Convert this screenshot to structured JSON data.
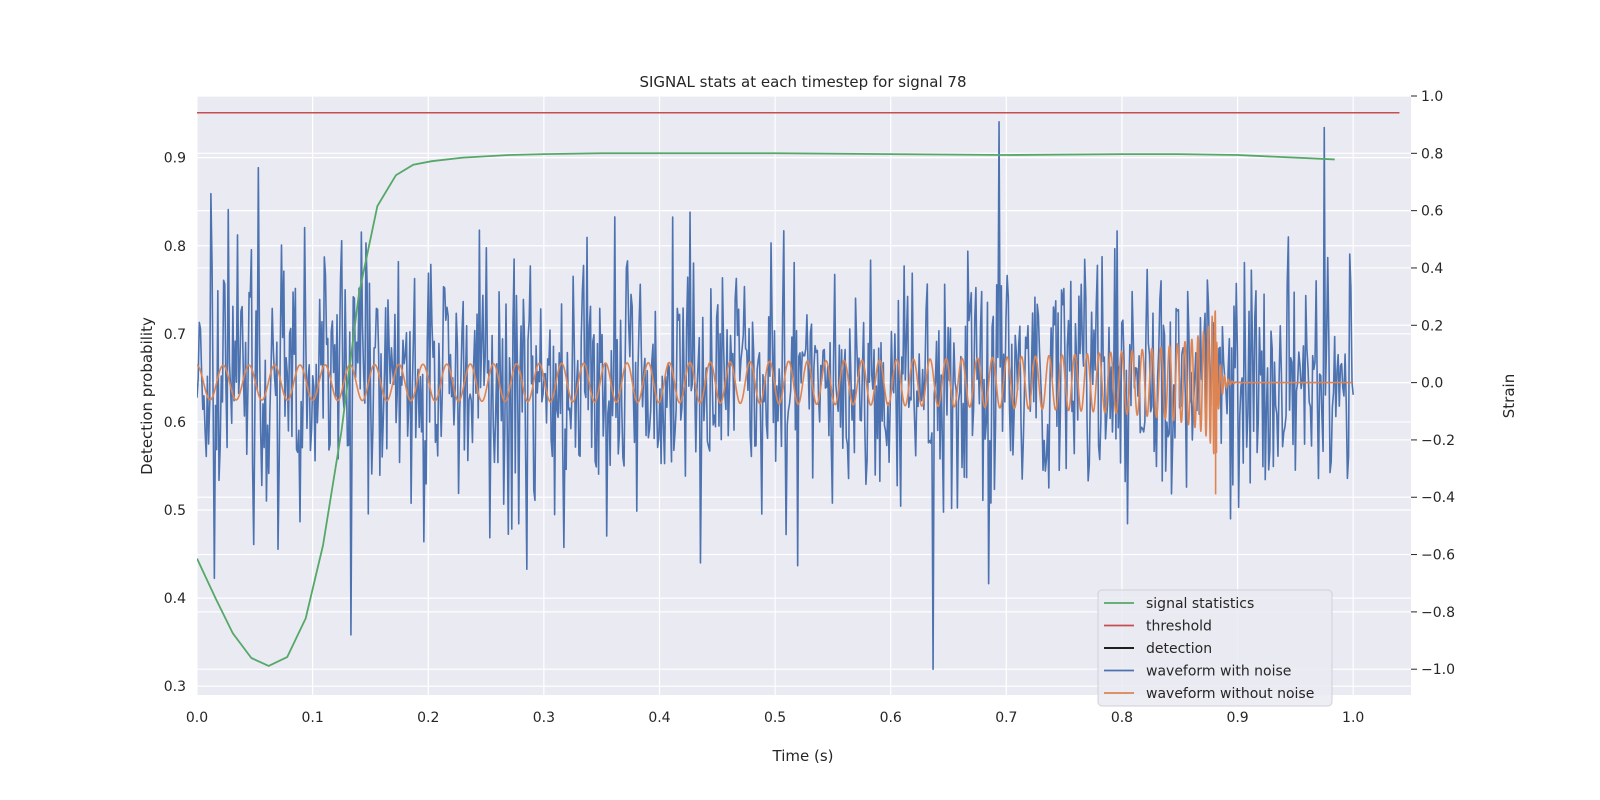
{
  "chart_data": {
    "type": "line",
    "title": "SIGNAL stats at each timestep for signal 78",
    "xlabel": "Time (s)",
    "ylabel_left": "Detection probability",
    "ylabel_right": "Strain",
    "xlim": [
      0.0,
      1.05
    ],
    "ylim_left": [
      0.29,
      0.97
    ],
    "ylim_right": [
      -1.09,
      1.0
    ],
    "x_ticks": [
      "0.0",
      "0.1",
      "0.2",
      "0.3",
      "0.4",
      "0.5",
      "0.6",
      "0.7",
      "0.8",
      "0.9",
      "1.0"
    ],
    "y_left_ticks": [
      "0.3",
      "0.4",
      "0.5",
      "0.6",
      "0.7",
      "0.8",
      "0.9"
    ],
    "y_right_ticks": [
      "1.0",
      "0.8",
      "0.6",
      "0.4",
      "0.2",
      "0.0",
      "−0.2",
      "−0.4",
      "−0.6",
      "−0.8",
      "−1.0"
    ],
    "grid": true,
    "legend_position": "lower-right",
    "colors": {
      "signal_statistics": "#55a868",
      "threshold": "#c44e52",
      "detection": "#000000",
      "waveform_with_noise": "#4c72b0",
      "waveform_without_noise": "#dd8452",
      "axes_background": "#eaeaf2",
      "grid": "#ffffff"
    },
    "series": [
      {
        "name": "signal statistics",
        "axis": "left",
        "x": [
          0.0,
          0.016,
          0.031,
          0.047,
          0.062,
          0.078,
          0.094,
          0.109,
          0.125,
          0.14,
          0.156,
          0.172,
          0.187,
          0.203,
          0.23,
          0.27,
          0.3,
          0.35,
          0.4,
          0.5,
          0.6,
          0.7,
          0.8,
          0.85,
          0.9,
          0.95,
          0.984
        ],
        "y": [
          0.445,
          0.4,
          0.36,
          0.332,
          0.323,
          0.333,
          0.377,
          0.46,
          0.59,
          0.745,
          0.845,
          0.88,
          0.892,
          0.896,
          0.9,
          0.903,
          0.904,
          0.905,
          0.905,
          0.905,
          0.904,
          0.903,
          0.904,
          0.904,
          0.903,
          0.9,
          0.898
        ]
      },
      {
        "name": "threshold",
        "axis": "left",
        "x": [
          0.0,
          1.04
        ],
        "y": [
          0.951,
          0.951
        ]
      },
      {
        "name": "detection",
        "axis": "left",
        "x": [],
        "y": []
      },
      {
        "name": "waveform with noise",
        "axis": "right",
        "x_range": [
          0.0,
          1.0
        ],
        "points": 1000,
        "rms_strain": 0.22,
        "peaks": [
          {
            "x": 0.053,
            "y": 0.75
          },
          {
            "x": 0.133,
            "y": -0.88
          },
          {
            "x": 0.637,
            "y": -1.0
          },
          {
            "x": 0.694,
            "y": 0.91
          },
          {
            "x": 0.975,
            "y": 0.89
          }
        ]
      },
      {
        "name": "waveform without noise",
        "axis": "right",
        "x_range": [
          0.0,
          1.0
        ],
        "start_frequency_hz": 44,
        "chirp_end_s": 0.882,
        "start_amplitude": 0.06,
        "peak_amplitude": 0.28,
        "min_strain": -0.39
      }
    ]
  }
}
